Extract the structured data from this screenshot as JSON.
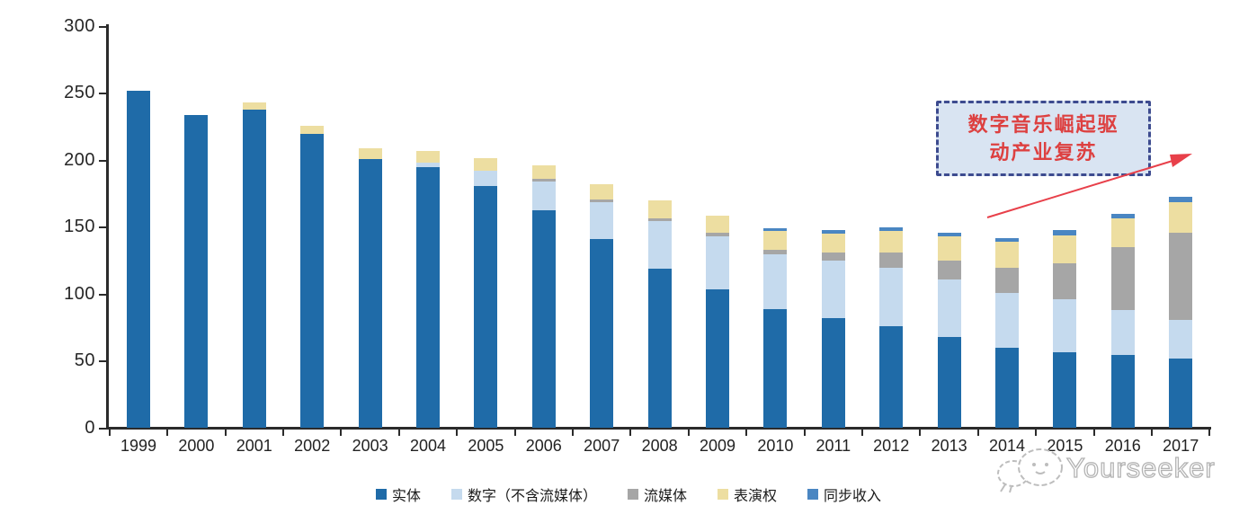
{
  "chart_data": {
    "type": "bar",
    "stacked": true,
    "title": "",
    "xlabel": "",
    "ylabel": "",
    "ylim": [
      0,
      300
    ],
    "yticks": [
      0,
      50,
      100,
      150,
      200,
      250,
      300
    ],
    "grid": false,
    "legend_position": "bottom",
    "categories": [
      "1999",
      "2000",
      "2001",
      "2002",
      "2003",
      "2004",
      "2005",
      "2006",
      "2007",
      "2008",
      "2009",
      "2010",
      "2011",
      "2012",
      "2013",
      "2014",
      "2015",
      "2016",
      "2017"
    ],
    "series": [
      {
        "key": "physical",
        "name": "实体",
        "color": "#1f6ba8",
        "values": [
          252,
          234,
          238,
          220,
          201,
          195,
          181,
          163,
          141,
          119,
          104,
          89,
          82,
          76,
          68,
          60,
          57,
          55,
          52
        ]
      },
      {
        "key": "digital-excl-streaming",
        "name": "数字（不含流媒体）",
        "color": "#c5daee",
        "values": [
          0,
          0,
          0,
          0,
          0,
          3,
          11,
          21,
          28,
          36,
          39,
          41,
          43,
          44,
          43,
          41,
          39,
          33,
          29
        ]
      },
      {
        "key": "streaming",
        "name": "流媒体",
        "color": "#a6a6a6",
        "values": [
          0,
          0,
          0,
          0,
          0,
          0,
          0,
          2,
          2,
          2,
          3,
          3,
          6,
          11,
          14,
          19,
          27,
          47,
          65
        ]
      },
      {
        "key": "performance-rights",
        "name": "表演权",
        "color": "#eddea1",
        "values": [
          0,
          0,
          5,
          6,
          8,
          9,
          10,
          10,
          11,
          13,
          13,
          14,
          14,
          16,
          18,
          19,
          21,
          22,
          23
        ]
      },
      {
        "key": "sync-revenue",
        "name": "同步收入",
        "color": "#4a86c2",
        "values": [
          0,
          0,
          0,
          0,
          0,
          0,
          0,
          0,
          0,
          0,
          0,
          2,
          3,
          3,
          3,
          3,
          4,
          3,
          4
        ]
      }
    ]
  },
  "annotation": {
    "line1": "数字音乐崛起驱",
    "line2": "动产业复苏",
    "text_color": "#dd4040",
    "box_fill": "#d9e4f2",
    "box_border": "#3d4b8f",
    "arrow_color": "#e8404a"
  },
  "watermark": {
    "text": "Yourseeker",
    "logo": "yourseeker-chat-bubbles-icon",
    "color": "#b3b3b3"
  }
}
